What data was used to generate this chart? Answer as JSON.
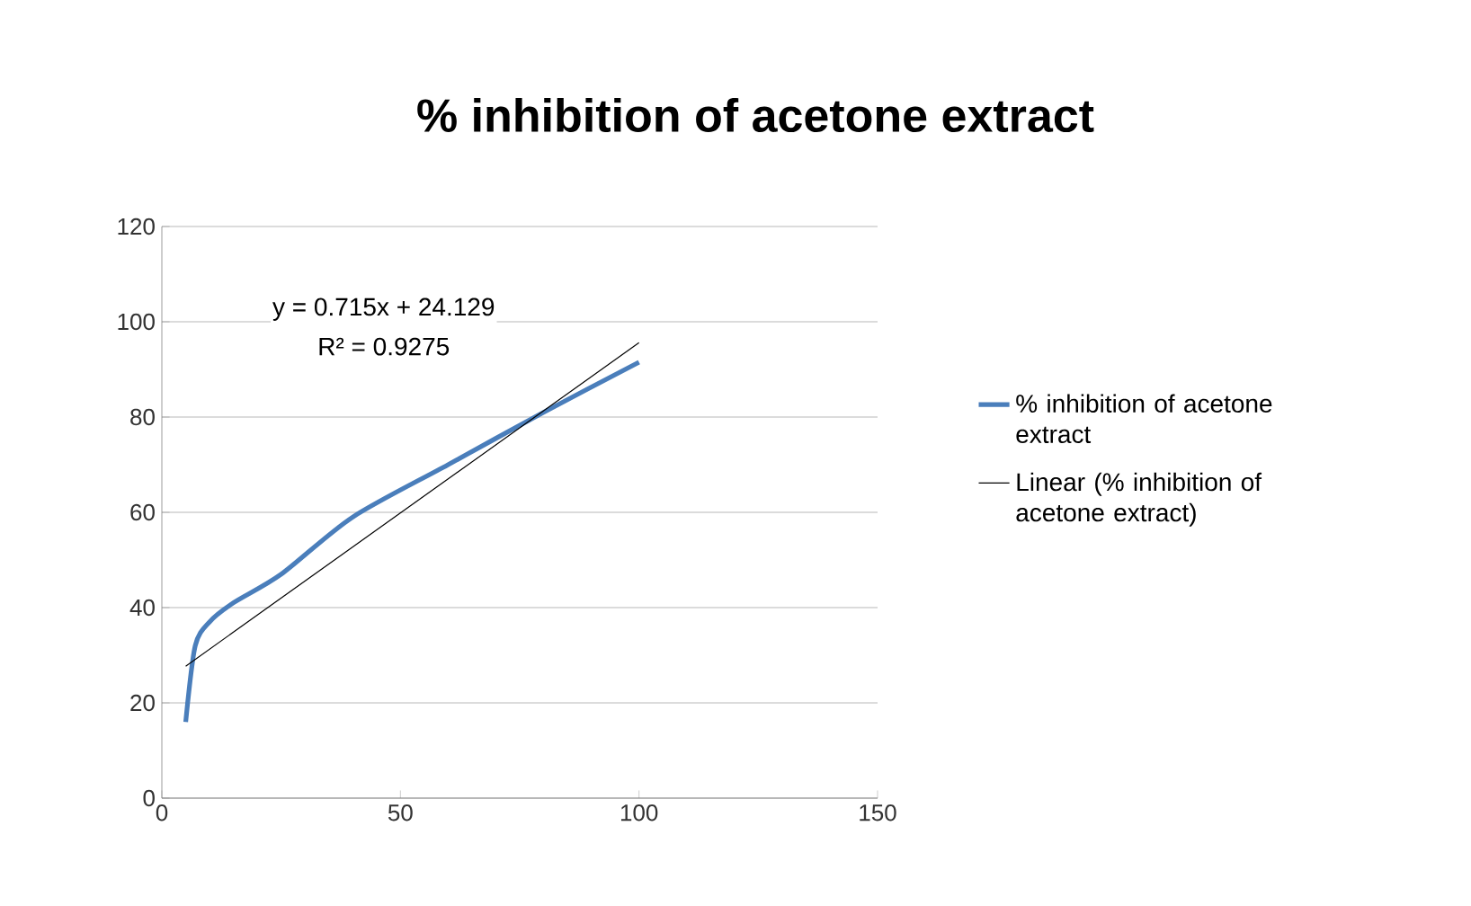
{
  "chart_data": {
    "type": "line",
    "title": "% inhibition of acetone extract",
    "series": [
      {
        "name": "% inhibition of acetone extract",
        "color": "#4a7ebb",
        "x": [
          5,
          7,
          10,
          15,
          25,
          40,
          60,
          80,
          100
        ],
        "values": [
          16,
          32,
          37,
          41,
          47,
          59,
          70,
          81,
          91.5
        ]
      },
      {
        "name": "Linear (% inhibition of acetone extract)",
        "type": "line",
        "color": "#000000",
        "x": [
          5,
          100
        ],
        "values": [
          27.7,
          95.6
        ]
      }
    ],
    "xlim": [
      0,
      150
    ],
    "xticks": [
      0,
      50,
      100,
      150
    ],
    "ylim": [
      0,
      120
    ],
    "yticks": [
      0,
      20,
      40,
      60,
      80,
      100,
      120
    ],
    "grid": "y",
    "legend": "right",
    "marker": "none",
    "line_style": "solid",
    "annotations": [
      "y = 0.715x + 24.129",
      "R² = 0.9275"
    ]
  }
}
